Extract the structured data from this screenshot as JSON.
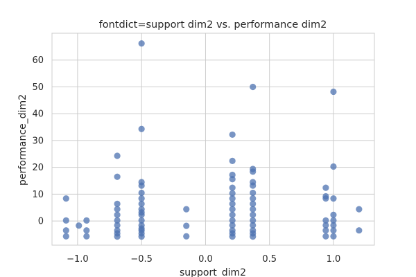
{
  "chart_data": {
    "type": "scatter",
    "title": "fontdict=support dim2 vs. performance dim2",
    "xlabel": "support_dim2",
    "ylabel": "performance_dim2",
    "xlim": [
      -1.2,
      1.32
    ],
    "ylim": [
      -9,
      70
    ],
    "xticks": [
      -1.0,
      -0.5,
      0.0,
      0.5,
      1.0
    ],
    "xtick_labels": [
      "−1.0",
      "−0.5",
      "0.0",
      "0.5",
      "1.0"
    ],
    "yticks": [
      0,
      10,
      20,
      30,
      40,
      50,
      60
    ],
    "ytick_labels": [
      "0",
      "10",
      "20",
      "30",
      "40",
      "50",
      "60"
    ],
    "grid": true,
    "point_color": "#4c72b0",
    "points": [
      {
        "x": -1.09,
        "y": 8.4
      },
      {
        "x": -1.09,
        "y": 0.2
      },
      {
        "x": -1.09,
        "y": -3.5
      },
      {
        "x": -1.09,
        "y": -5.7
      },
      {
        "x": -0.99,
        "y": -1.7
      },
      {
        "x": -0.93,
        "y": 0.2
      },
      {
        "x": -0.93,
        "y": -3.5
      },
      {
        "x": -0.93,
        "y": -5.7
      },
      {
        "x": -0.69,
        "y": 24.3
      },
      {
        "x": -0.69,
        "y": 16.5
      },
      {
        "x": -0.69,
        "y": 6.4
      },
      {
        "x": -0.69,
        "y": 4.4
      },
      {
        "x": -0.69,
        "y": 2.3
      },
      {
        "x": -0.69,
        "y": 0.2
      },
      {
        "x": -0.69,
        "y": -1.6
      },
      {
        "x": -0.69,
        "y": -3.5
      },
      {
        "x": -0.69,
        "y": -4.6
      },
      {
        "x": -0.69,
        "y": -5.8
      },
      {
        "x": -0.5,
        "y": 66.2
      },
      {
        "x": -0.5,
        "y": 34.3
      },
      {
        "x": -0.5,
        "y": 14.5
      },
      {
        "x": -0.5,
        "y": 13.2
      },
      {
        "x": -0.5,
        "y": 10.5
      },
      {
        "x": -0.5,
        "y": 8.4
      },
      {
        "x": -0.5,
        "y": 6.4
      },
      {
        "x": -0.5,
        "y": 4.4
      },
      {
        "x": -0.5,
        "y": 3.2
      },
      {
        "x": -0.5,
        "y": 2.3
      },
      {
        "x": -0.5,
        "y": 0.2
      },
      {
        "x": -0.5,
        "y": -1.6
      },
      {
        "x": -0.5,
        "y": -2.8
      },
      {
        "x": -0.5,
        "y": -3.5
      },
      {
        "x": -0.5,
        "y": -4.6
      },
      {
        "x": -0.5,
        "y": -5.8
      },
      {
        "x": -0.15,
        "y": 4.4
      },
      {
        "x": -0.15,
        "y": -1.8
      },
      {
        "x": -0.15,
        "y": -5.7
      },
      {
        "x": 0.21,
        "y": 32.2
      },
      {
        "x": 0.21,
        "y": 22.4
      },
      {
        "x": 0.21,
        "y": 17.2
      },
      {
        "x": 0.21,
        "y": 15.6
      },
      {
        "x": 0.21,
        "y": 12.4
      },
      {
        "x": 0.21,
        "y": 10.3
      },
      {
        "x": 0.21,
        "y": 8.4
      },
      {
        "x": 0.21,
        "y": 6.4
      },
      {
        "x": 0.21,
        "y": 4.4
      },
      {
        "x": 0.21,
        "y": 2.3
      },
      {
        "x": 0.21,
        "y": 0.2
      },
      {
        "x": 0.21,
        "y": -1.6
      },
      {
        "x": 0.21,
        "y": -3.5
      },
      {
        "x": 0.21,
        "y": -4.6
      },
      {
        "x": 0.21,
        "y": -5.8
      },
      {
        "x": 0.37,
        "y": 50.0
      },
      {
        "x": 0.37,
        "y": 19.4
      },
      {
        "x": 0.37,
        "y": 18.4
      },
      {
        "x": 0.37,
        "y": 14.5
      },
      {
        "x": 0.37,
        "y": 13.2
      },
      {
        "x": 0.37,
        "y": 10.5
      },
      {
        "x": 0.37,
        "y": 8.4
      },
      {
        "x": 0.37,
        "y": 6.4
      },
      {
        "x": 0.37,
        "y": 4.4
      },
      {
        "x": 0.37,
        "y": 2.3
      },
      {
        "x": 0.37,
        "y": 0.2
      },
      {
        "x": 0.37,
        "y": -1.6
      },
      {
        "x": 0.37,
        "y": -3.5
      },
      {
        "x": 0.37,
        "y": -4.6
      },
      {
        "x": 0.37,
        "y": -5.8
      },
      {
        "x": 0.94,
        "y": 12.4
      },
      {
        "x": 0.94,
        "y": 9.2
      },
      {
        "x": 0.94,
        "y": 8.4
      },
      {
        "x": 0.94,
        "y": 0.2
      },
      {
        "x": 0.94,
        "y": -1.6
      },
      {
        "x": 0.94,
        "y": -3.5
      },
      {
        "x": 0.94,
        "y": -5.7
      },
      {
        "x": 1.0,
        "y": 48.2
      },
      {
        "x": 1.0,
        "y": 20.3
      },
      {
        "x": 1.0,
        "y": 8.4
      },
      {
        "x": 1.0,
        "y": 2.3
      },
      {
        "x": 1.0,
        "y": 0.2
      },
      {
        "x": 1.0,
        "y": -1.6
      },
      {
        "x": 1.0,
        "y": -3.5
      },
      {
        "x": 1.0,
        "y": -5.7
      },
      {
        "x": 1.2,
        "y": 4.4
      },
      {
        "x": 1.2,
        "y": -3.5
      }
    ]
  }
}
